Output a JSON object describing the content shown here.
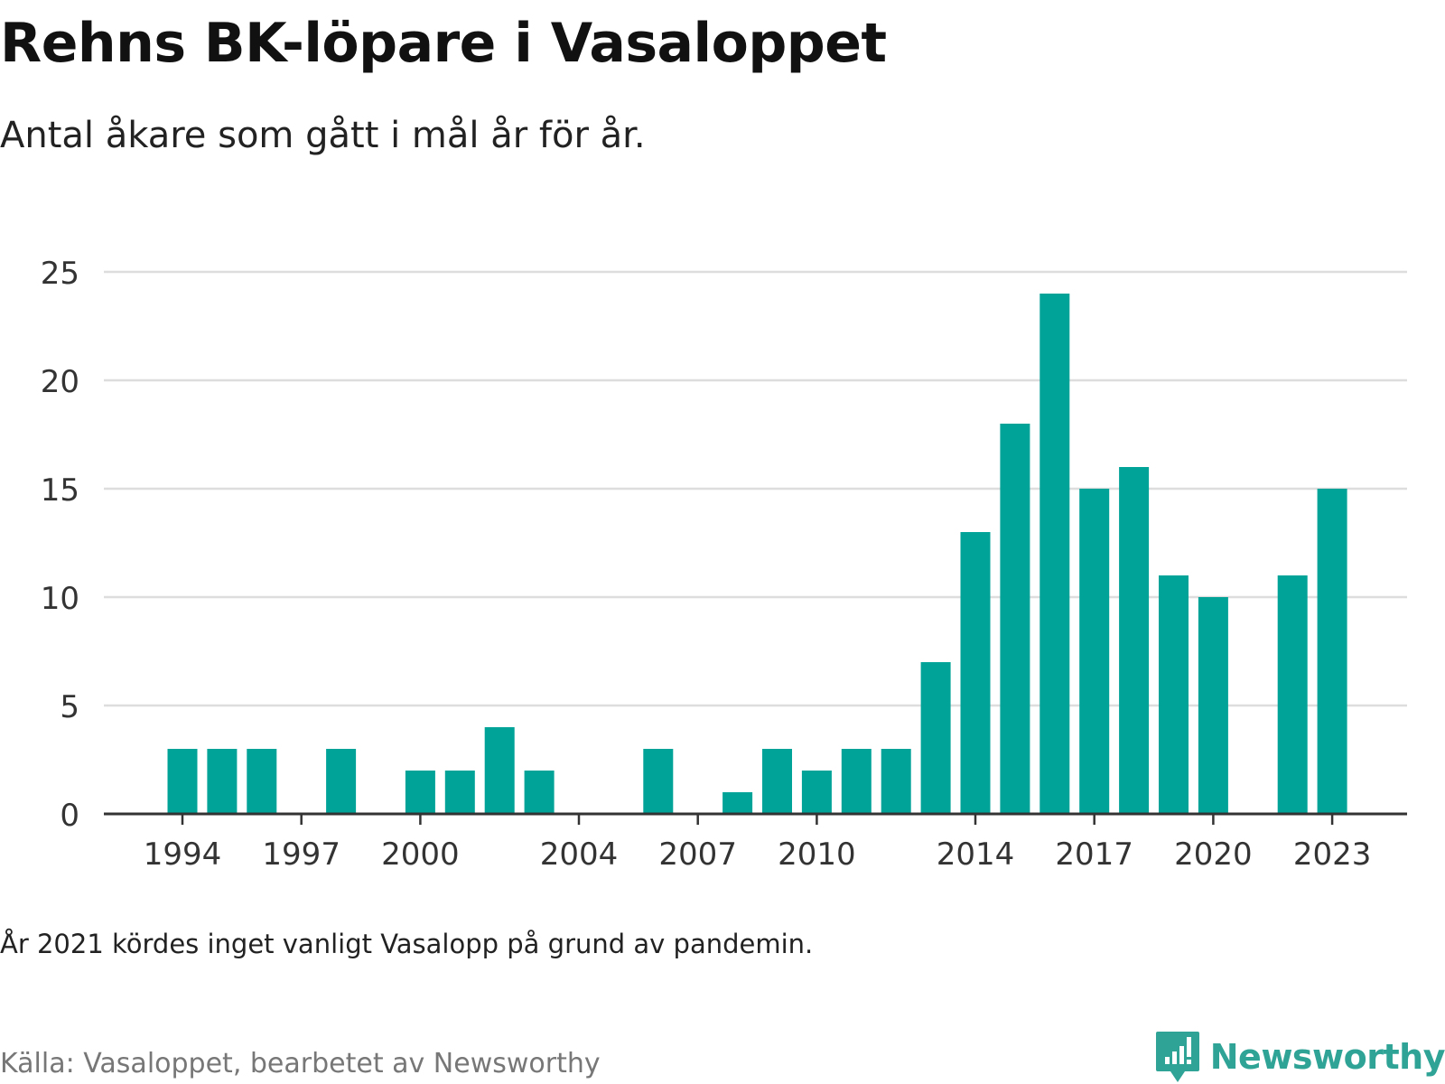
{
  "title": "Rehns BK-löpare i Vasaloppet",
  "subtitle": "Antal åkare som gått i mål år för år.",
  "note": "År 2021 kördes inget vanligt Vasalopp på grund av pandemin.",
  "source": "Källa: Vasaloppet, bearbetet av Newsworthy",
  "brand": {
    "name": "Newsworthy",
    "icon": "newsworthy-logo-icon",
    "color": "#2fa396"
  },
  "chart_data": {
    "type": "bar",
    "color": "#00a398",
    "x": [
      1994,
      1995,
      1996,
      1997,
      1998,
      1999,
      2000,
      2001,
      2002,
      2003,
      2004,
      2005,
      2006,
      2007,
      2008,
      2009,
      2010,
      2011,
      2012,
      2013,
      2014,
      2015,
      2016,
      2017,
      2018,
      2019,
      2020,
      2021,
      2022,
      2023
    ],
    "values": [
      3,
      3,
      3,
      0,
      3,
      0,
      2,
      2,
      4,
      2,
      0,
      0,
      3,
      0,
      1,
      3,
      2,
      3,
      3,
      7,
      13,
      18,
      24,
      15,
      16,
      11,
      10,
      0,
      11,
      15
    ],
    "ylim": [
      0,
      25
    ],
    "yticks": [
      0,
      5,
      10,
      15,
      20,
      25
    ],
    "xticks": [
      1994,
      1997,
      2000,
      2004,
      2007,
      2010,
      2014,
      2017,
      2020,
      2023
    ],
    "grid": true,
    "xlabel": "",
    "ylabel": ""
  }
}
